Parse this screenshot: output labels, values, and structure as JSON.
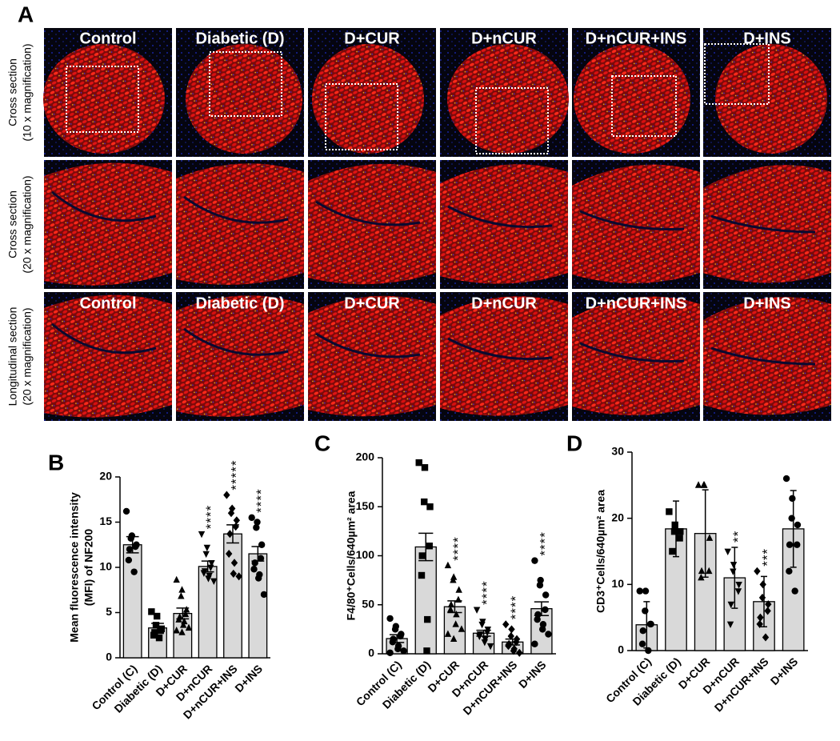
{
  "panel_a": {
    "label": "A",
    "row_titles": [
      [
        "Cross section",
        "(10 x magnification)"
      ],
      [
        "Cross section",
        "(20 x magnification)"
      ],
      [
        "Longitudinal section",
        "(20 x magnification)"
      ]
    ],
    "top_labels": [
      "Control",
      "Diabetic (D)",
      "D+CUR",
      "D+nCUR",
      "D+nCUR+INS",
      "D+INS"
    ],
    "bottom_labels": [
      "Control",
      "Diabetic (D)",
      "D+CUR",
      "D+nCUR",
      "D+nCUR+INS",
      "D+INS"
    ]
  },
  "chart_data": [
    {
      "type": "bar",
      "panel_label": "B",
      "ylabel": [
        "Mean fluorescence intensity",
        "(MFI) of NF200"
      ],
      "categories": [
        "Control (C)",
        "Diabetic (D)",
        "D+CUR",
        "D+nCUR",
        "D+nCUR+INS",
        "D+INS"
      ],
      "values": [
        12.5,
        3.3,
        4.9,
        10.1,
        13.7,
        11.5
      ],
      "errors": [
        0.9,
        0.5,
        0.6,
        0.6,
        1.0,
        0.8
      ],
      "points": [
        [
          16.2,
          13.5,
          13.2,
          12.5,
          12.3,
          12,
          10.8,
          9.5
        ],
        [
          5.1,
          4.6,
          3.6,
          3.2,
          3.0,
          2.8,
          2.5,
          2.2
        ],
        [
          8.6,
          7.5,
          6.8,
          5.3,
          4.8,
          4.5,
          4.2,
          4.0,
          3.6,
          3.3,
          3.0,
          2.8
        ],
        [
          13.7,
          12.2,
          11.5,
          10.5,
          10,
          9.6,
          9.4,
          9.1,
          8.8,
          8.5
        ],
        [
          18.0,
          16.5,
          16.0,
          15.2,
          14.5,
          13.7,
          11.5,
          10.5,
          9.3,
          9.0
        ],
        [
          15.5,
          15.0,
          14.4,
          12.5,
          11.0,
          10.5,
          9.8,
          9.2,
          8.8,
          7.0
        ]
      ],
      "significance": [
        null,
        null,
        null,
        "****",
        "*****",
        "****"
      ],
      "color": "#d9d9d9",
      "ylim": [
        0,
        20
      ],
      "yticks": [
        0,
        5,
        10,
        15,
        20
      ]
    },
    {
      "type": "bar",
      "panel_label": "C",
      "ylabel": "F4/80⁺Cells/640µm² area",
      "categories": [
        "Control (C)",
        "Diabetic (D)",
        "D+CUR",
        "D+nCUR",
        "D+nCUR+INS",
        "D+INS"
      ],
      "values": [
        15.5,
        109,
        48,
        21,
        12,
        46
      ],
      "errors": [
        4,
        14,
        6,
        3,
        3,
        7
      ],
      "points": [
        [
          36,
          28,
          25,
          20,
          18,
          15,
          12,
          8,
          5,
          3,
          1
        ],
        [
          195,
          190,
          155,
          150,
          110,
          100,
          80,
          35,
          3
        ],
        [
          90,
          78,
          75,
          65,
          55,
          50,
          45,
          40,
          30,
          25,
          20,
          15
        ],
        [
          45,
          33,
          30,
          25,
          22,
          20,
          18,
          15,
          12,
          8
        ],
        [
          30,
          25,
          18,
          15,
          12,
          10,
          8,
          5,
          3,
          1
        ],
        [
          95,
          75,
          70,
          60,
          45,
          40,
          35,
          30,
          25,
          20,
          10
        ]
      ],
      "significance": [
        null,
        null,
        "****",
        "****",
        "****",
        "****"
      ],
      "color": "#d9d9d9",
      "ylim": [
        0,
        200
      ],
      "yticks": [
        0,
        50,
        100,
        150,
        200
      ]
    },
    {
      "type": "bar",
      "panel_label": "D",
      "ylabel": "CD3⁺Cells/640µm² area",
      "categories": [
        "Control (C)",
        "Diabetic (D)",
        "D+CUR",
        "D+nCUR",
        "D+nCUR+INS",
        "D+INS"
      ],
      "values": [
        3.9,
        18.4,
        17.7,
        11.0,
        7.4,
        18.4
      ],
      "errors": [
        3.5,
        4.2,
        6.6,
        4.6,
        3.8,
        5.8
      ],
      "points": [
        [
          9,
          9,
          6,
          4,
          4,
          3,
          1,
          0
        ],
        [
          21,
          19,
          18,
          18,
          17,
          15
        ],
        [
          25,
          25,
          25,
          17,
          12,
          12,
          11
        ],
        [
          15,
          13,
          12,
          10,
          9,
          7,
          4
        ],
        [
          12,
          10,
          8,
          7,
          6,
          5,
          4,
          2
        ],
        [
          26,
          23,
          20,
          19,
          16,
          16,
          12,
          9
        ]
      ],
      "significance": [
        null,
        null,
        null,
        "**",
        "***",
        null
      ],
      "color": "#d9d9d9",
      "ylim": [
        0,
        30
      ],
      "yticks": [
        0,
        10,
        20,
        30
      ]
    }
  ]
}
